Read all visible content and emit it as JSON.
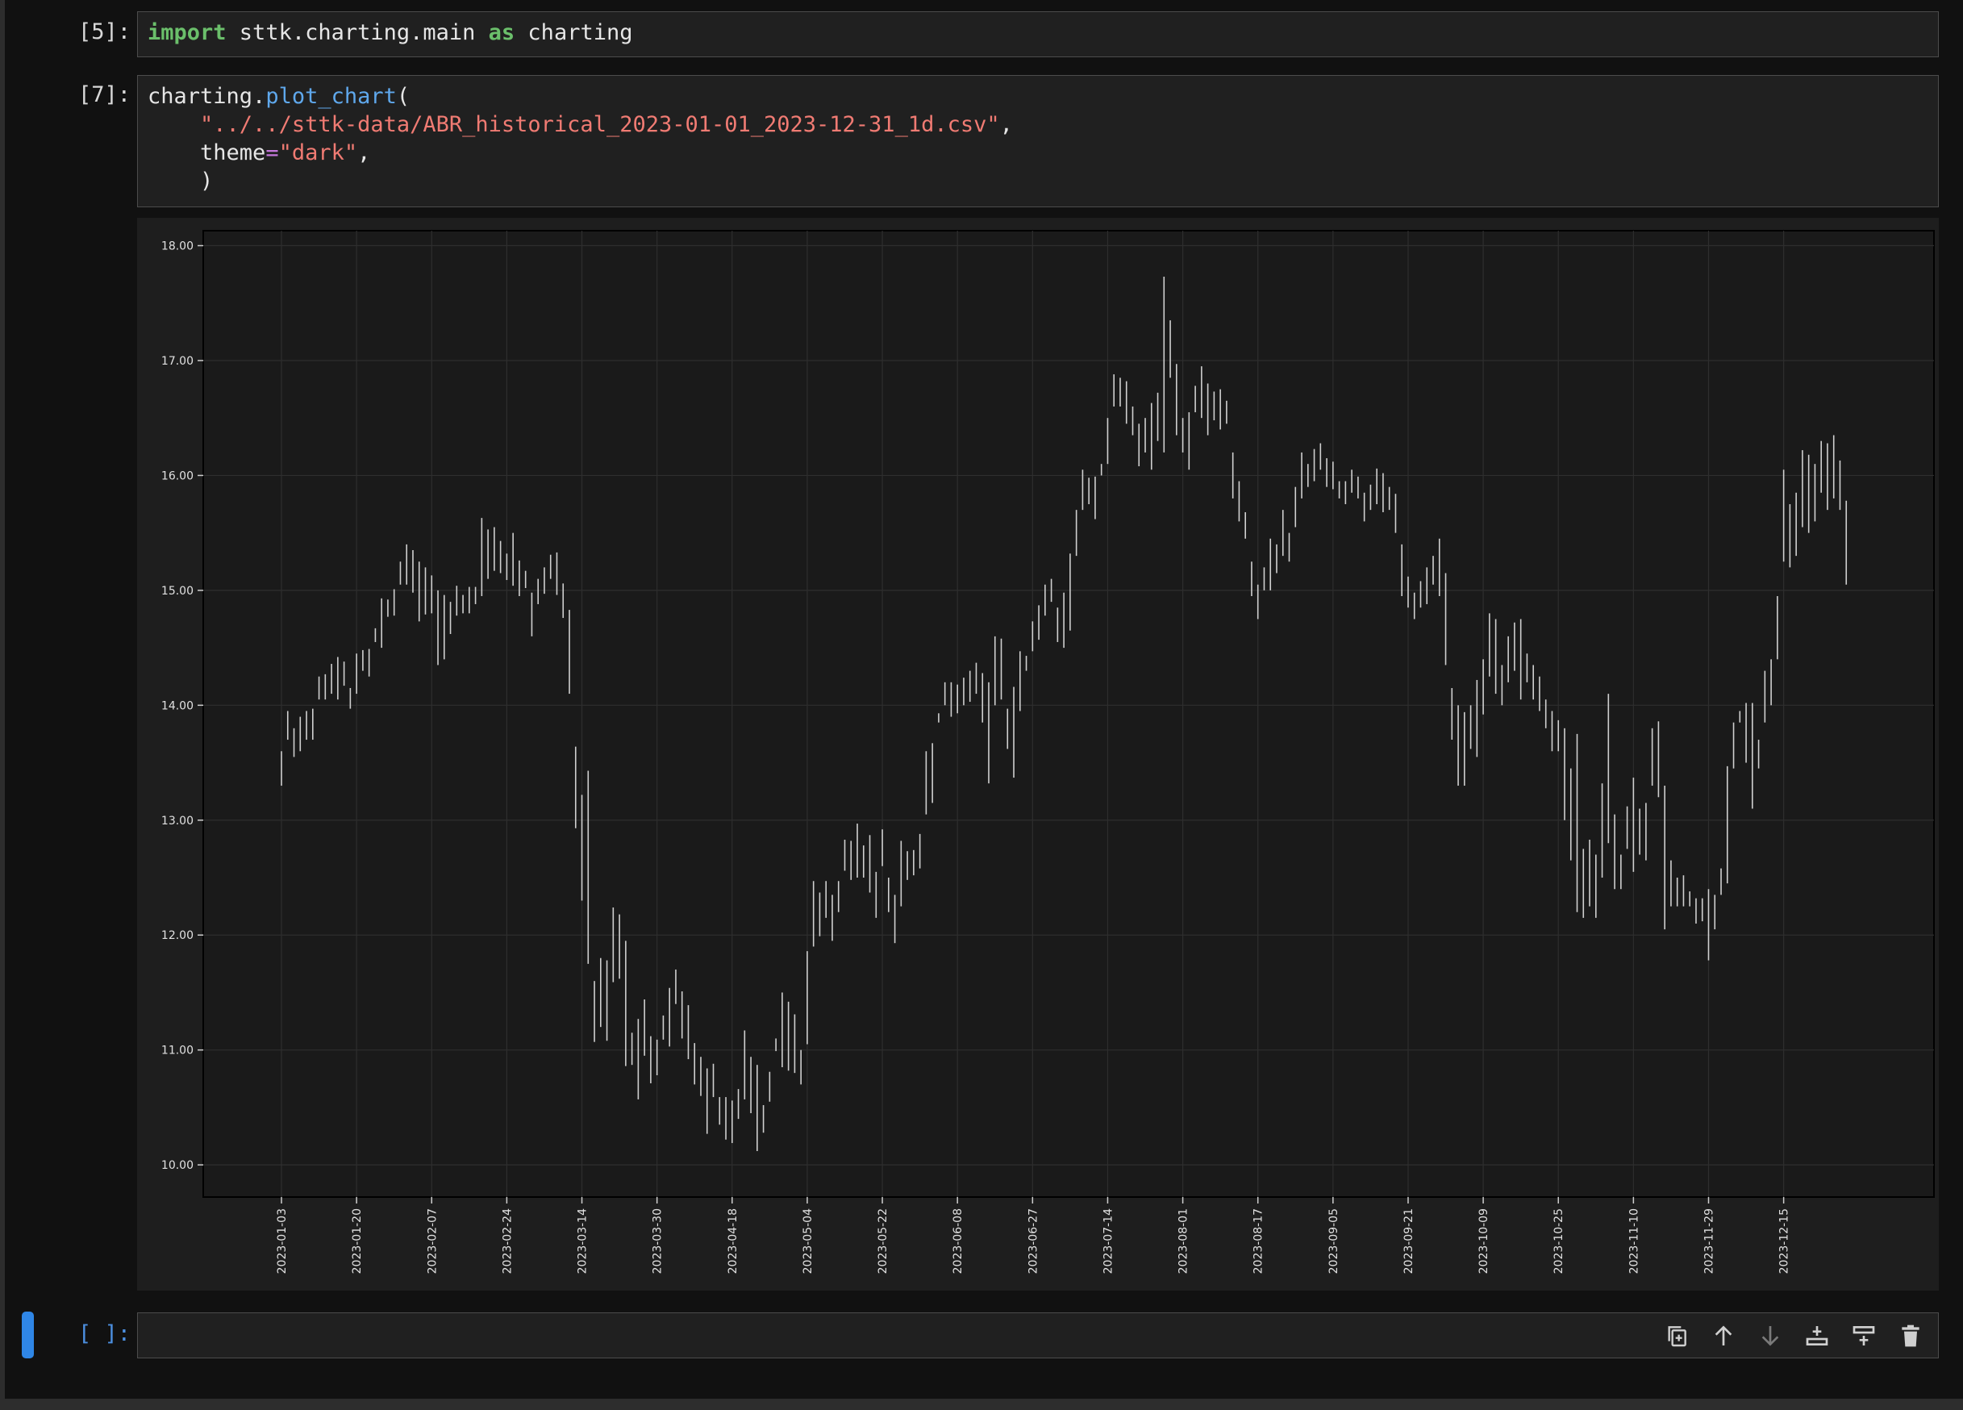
{
  "cells": [
    {
      "prompt": "[5]:",
      "lines": [
        [
          {
            "t": "import",
            "c": "kw"
          },
          {
            "t": " sttk.charting.main ",
            "c": ""
          },
          {
            "t": "as",
            "c": "kw"
          },
          {
            "t": " charting",
            "c": ""
          }
        ]
      ]
    },
    {
      "prompt": "[7]:",
      "lines": [
        [
          {
            "t": "charting.",
            "c": ""
          },
          {
            "t": "plot_chart",
            "c": "fn"
          },
          {
            "t": "(",
            "c": ""
          }
        ],
        [
          {
            "t": "    ",
            "c": ""
          },
          {
            "t": "\"../../sttk-data/ABR_historical_2023-01-01_2023-12-31_1d.csv\"",
            "c": "str"
          },
          {
            "t": ",",
            "c": ""
          }
        ],
        [
          {
            "t": "    theme",
            "c": ""
          },
          {
            "t": "=",
            "c": "op"
          },
          {
            "t": "\"dark\"",
            "c": "str"
          },
          {
            "t": ",",
            "c": ""
          }
        ],
        [
          {
            "t": "    )",
            "c": ""
          }
        ]
      ]
    }
  ],
  "empty_cell": {
    "prompt": "[ ]:"
  },
  "toolbar_icons": [
    "duplicate-icon",
    "move-up-icon",
    "move-down-icon",
    "insert-above-icon",
    "insert-below-icon",
    "delete-icon"
  ],
  "colors": {
    "accent": "#2f86e6",
    "bar": "#d0d0d0",
    "chart_bg": "#1a1a1a"
  },
  "chart_data": {
    "type": "ohlc",
    "title": "",
    "xlabel": "",
    "ylabel": "",
    "ylim": [
      9.72,
      18.13
    ],
    "grid": true,
    "yticks": [
      "10.00",
      "11.00",
      "12.00",
      "13.00",
      "14.00",
      "15.00",
      "16.00",
      "17.00",
      "18.00"
    ],
    "yticks_values": [
      10,
      11,
      12,
      13,
      14,
      15,
      16,
      17,
      18
    ],
    "xticks": [
      "2023-01-03",
      "2023-01-20",
      "2023-02-07",
      "2023-02-24",
      "2023-03-14",
      "2023-03-30",
      "2023-04-18",
      "2023-05-04",
      "2023-05-22",
      "2023-06-08",
      "2023-06-27",
      "2023-07-14",
      "2023-08-01",
      "2023-08-17",
      "2023-09-05",
      "2023-09-21",
      "2023-10-09",
      "2023-10-25",
      "2023-11-10",
      "2023-11-29",
      "2023-12-15"
    ],
    "x_count": 252,
    "ranges": [
      [
        13.3,
        13.6
      ],
      [
        13.7,
        13.95
      ],
      [
        13.55,
        13.8
      ],
      [
        13.6,
        13.9
      ],
      [
        13.7,
        13.95
      ],
      [
        13.7,
        13.97
      ],
      [
        14.05,
        14.25
      ],
      [
        14.05,
        14.27
      ],
      [
        14.1,
        14.36
      ],
      [
        14.05,
        14.42
      ],
      [
        14.17,
        14.38
      ],
      [
        13.97,
        14.15
      ],
      [
        14.1,
        14.45
      ],
      [
        14.3,
        14.48
      ],
      [
        14.25,
        14.49
      ],
      [
        14.55,
        14.67
      ],
      [
        14.5,
        14.93
      ],
      [
        14.77,
        14.92
      ],
      [
        14.78,
        15.01
      ],
      [
        15.05,
        15.25
      ],
      [
        15.05,
        15.4
      ],
      [
        14.98,
        15.35
      ],
      [
        14.73,
        15.25
      ],
      [
        14.79,
        15.2
      ],
      [
        14.8,
        15.13
      ],
      [
        14.35,
        15.0
      ],
      [
        14.4,
        14.96
      ],
      [
        14.62,
        14.9
      ],
      [
        14.78,
        15.04
      ],
      [
        14.8,
        14.96
      ],
      [
        14.8,
        15.03
      ],
      [
        14.88,
        15.03
      ],
      [
        14.95,
        15.63
      ],
      [
        15.1,
        15.53
      ],
      [
        15.17,
        15.55
      ],
      [
        15.15,
        15.43
      ],
      [
        15.09,
        15.32
      ],
      [
        15.04,
        15.5
      ],
      [
        14.95,
        15.26
      ],
      [
        15.02,
        15.17
      ],
      [
        14.6,
        14.98
      ],
      [
        14.88,
        15.1
      ],
      [
        14.97,
        15.2
      ],
      [
        15.1,
        15.31
      ],
      [
        14.96,
        15.33
      ],
      [
        14.76,
        15.06
      ],
      [
        14.1,
        14.83
      ],
      [
        12.93,
        13.64
      ],
      [
        12.3,
        13.22
      ],
      [
        11.75,
        13.43
      ],
      [
        11.07,
        11.6
      ],
      [
        11.2,
        11.8
      ],
      [
        11.08,
        11.78
      ],
      [
        11.59,
        12.24
      ],
      [
        11.62,
        12.18
      ],
      [
        10.86,
        11.95
      ],
      [
        10.87,
        11.15
      ],
      [
        10.57,
        11.27
      ],
      [
        10.95,
        11.44
      ],
      [
        10.71,
        11.12
      ],
      [
        10.78,
        11.09
      ],
      [
        11.09,
        11.3
      ],
      [
        11.03,
        11.54
      ],
      [
        11.4,
        11.7
      ],
      [
        11.1,
        11.51
      ],
      [
        10.92,
        11.39
      ],
      [
        10.7,
        11.06
      ],
      [
        10.6,
        10.94
      ],
      [
        10.27,
        10.84
      ],
      [
        10.59,
        10.88
      ],
      [
        10.35,
        10.59
      ],
      [
        10.22,
        10.59
      ],
      [
        10.19,
        10.56
      ],
      [
        10.4,
        10.66
      ],
      [
        10.57,
        11.17
      ],
      [
        10.45,
        10.94
      ],
      [
        10.12,
        10.87
      ],
      [
        10.28,
        10.52
      ],
      [
        10.55,
        10.81
      ],
      [
        10.99,
        11.1
      ],
      [
        10.85,
        11.5
      ],
      [
        10.82,
        11.42
      ],
      [
        10.8,
        11.31
      ],
      [
        10.7,
        11.0
      ],
      [
        11.05,
        11.86
      ],
      [
        11.9,
        12.47
      ],
      [
        11.99,
        12.37
      ],
      [
        12.15,
        12.47
      ],
      [
        11.95,
        12.35
      ],
      [
        12.2,
        12.47
      ],
      [
        12.56,
        12.83
      ],
      [
        12.48,
        12.82
      ],
      [
        12.5,
        12.97
      ],
      [
        12.5,
        12.78
      ],
      [
        12.37,
        12.87
      ],
      [
        12.15,
        12.55
      ],
      [
        12.6,
        12.92
      ],
      [
        12.2,
        12.5
      ],
      [
        11.93,
        12.35
      ],
      [
        12.25,
        12.82
      ],
      [
        12.48,
        12.73
      ],
      [
        12.52,
        12.74
      ],
      [
        12.58,
        12.88
      ],
      [
        13.05,
        13.6
      ],
      [
        13.15,
        13.67
      ],
      [
        13.85,
        13.93
      ],
      [
        14.0,
        14.2
      ],
      [
        13.9,
        14.2
      ],
      [
        13.93,
        14.18
      ],
      [
        14.0,
        14.24
      ],
      [
        14.03,
        14.3
      ],
      [
        14.1,
        14.37
      ],
      [
        13.85,
        14.28
      ],
      [
        13.32,
        14.2
      ],
      [
        14.0,
        14.6
      ],
      [
        14.05,
        14.58
      ],
      [
        13.62,
        13.97
      ],
      [
        13.37,
        14.16
      ],
      [
        13.95,
        14.47
      ],
      [
        14.3,
        14.43
      ],
      [
        14.47,
        14.73
      ],
      [
        14.57,
        14.87
      ],
      [
        14.78,
        15.05
      ],
      [
        14.9,
        15.1
      ],
      [
        14.55,
        14.85
      ],
      [
        14.5,
        14.98
      ],
      [
        14.65,
        15.32
      ],
      [
        15.3,
        15.7
      ],
      [
        15.7,
        16.05
      ],
      [
        15.75,
        15.98
      ],
      [
        15.62,
        15.99
      ],
      [
        16.0,
        16.1
      ],
      [
        16.1,
        16.5
      ],
      [
        16.6,
        16.88
      ],
      [
        16.6,
        16.85
      ],
      [
        16.45,
        16.82
      ],
      [
        16.35,
        16.6
      ],
      [
        16.08,
        16.45
      ],
      [
        16.2,
        16.5
      ],
      [
        16.05,
        16.63
      ],
      [
        16.3,
        16.72
      ],
      [
        16.2,
        17.73
      ],
      [
        16.85,
        17.35
      ],
      [
        16.35,
        16.97
      ],
      [
        16.2,
        16.5
      ],
      [
        16.05,
        16.55
      ],
      [
        16.55,
        16.78
      ],
      [
        16.5,
        16.95
      ],
      [
        16.35,
        16.8
      ],
      [
        16.48,
        16.73
      ],
      [
        16.4,
        16.75
      ],
      [
        16.45,
        16.65
      ],
      [
        15.8,
        16.2
      ],
      [
        15.6,
        15.95
      ],
      [
        15.45,
        15.68
      ],
      [
        14.95,
        15.25
      ],
      [
        14.75,
        15.05
      ],
      [
        15.0,
        15.2
      ],
      [
        15.0,
        15.45
      ],
      [
        15.15,
        15.4
      ],
      [
        15.3,
        15.7
      ],
      [
        15.25,
        15.5
      ],
      [
        15.55,
        15.9
      ],
      [
        15.8,
        16.2
      ],
      [
        15.9,
        16.1
      ],
      [
        15.95,
        16.23
      ],
      [
        16.05,
        16.28
      ],
      [
        15.9,
        16.15
      ],
      [
        15.88,
        16.12
      ],
      [
        15.8,
        15.95
      ],
      [
        15.75,
        15.95
      ],
      [
        15.85,
        16.05
      ],
      [
        15.8,
        15.99
      ],
      [
        15.6,
        15.85
      ],
      [
        15.7,
        15.92
      ],
      [
        15.75,
        16.06
      ],
      [
        15.68,
        16.02
      ],
      [
        15.7,
        15.9
      ],
      [
        15.5,
        15.84
      ],
      [
        14.95,
        15.4
      ],
      [
        14.85,
        15.12
      ],
      [
        14.75,
        14.98
      ],
      [
        14.85,
        15.08
      ],
      [
        14.88,
        15.2
      ],
      [
        15.05,
        15.3
      ],
      [
        14.95,
        15.45
      ],
      [
        14.35,
        15.15
      ],
      [
        13.7,
        14.15
      ],
      [
        13.3,
        14.0
      ],
      [
        13.3,
        13.94
      ],
      [
        13.62,
        14.0
      ],
      [
        13.55,
        14.22
      ],
      [
        13.92,
        14.4
      ],
      [
        14.25,
        14.8
      ],
      [
        14.1,
        14.75
      ],
      [
        14.0,
        14.35
      ],
      [
        14.2,
        14.6
      ],
      [
        14.3,
        14.72
      ],
      [
        14.05,
        14.75
      ],
      [
        14.2,
        14.45
      ],
      [
        14.05,
        14.35
      ],
      [
        13.95,
        14.25
      ],
      [
        13.8,
        14.05
      ],
      [
        13.6,
        13.95
      ],
      [
        13.6,
        13.87
      ],
      [
        13.0,
        13.8
      ],
      [
        12.65,
        13.45
      ],
      [
        12.2,
        13.75
      ],
      [
        12.15,
        12.75
      ],
      [
        12.25,
        12.83
      ],
      [
        12.15,
        12.7
      ],
      [
        12.5,
        13.32
      ],
      [
        12.8,
        14.1
      ],
      [
        12.4,
        13.05
      ],
      [
        12.4,
        12.7
      ],
      [
        12.75,
        13.12
      ],
      [
        12.55,
        13.37
      ],
      [
        12.7,
        13.1
      ],
      [
        12.65,
        13.15
      ],
      [
        13.3,
        13.8
      ],
      [
        13.2,
        13.86
      ],
      [
        12.05,
        13.3
      ],
      [
        12.25,
        12.65
      ],
      [
        12.25,
        12.5
      ],
      [
        12.25,
        12.52
      ],
      [
        12.25,
        12.38
      ],
      [
        12.1,
        12.32
      ],
      [
        12.12,
        12.32
      ],
      [
        11.78,
        12.4
      ],
      [
        12.05,
        12.35
      ],
      [
        12.35,
        12.58
      ],
      [
        12.45,
        13.47
      ],
      [
        13.45,
        13.85
      ],
      [
        13.85,
        13.95
      ],
      [
        13.5,
        14.02
      ],
      [
        13.1,
        14.02
      ],
      [
        13.45,
        13.7
      ],
      [
        13.85,
        14.3
      ],
      [
        14.0,
        14.4
      ],
      [
        14.4,
        14.95
      ],
      [
        15.25,
        16.05
      ],
      [
        15.2,
        15.75
      ],
      [
        15.3,
        15.85
      ],
      [
        15.55,
        16.22
      ],
      [
        15.5,
        16.18
      ],
      [
        15.6,
        16.1
      ],
      [
        15.85,
        16.3
      ],
      [
        15.7,
        16.28
      ],
      [
        15.8,
        16.35
      ],
      [
        15.7,
        16.13
      ],
      [
        15.05,
        15.78
      ]
    ]
  }
}
